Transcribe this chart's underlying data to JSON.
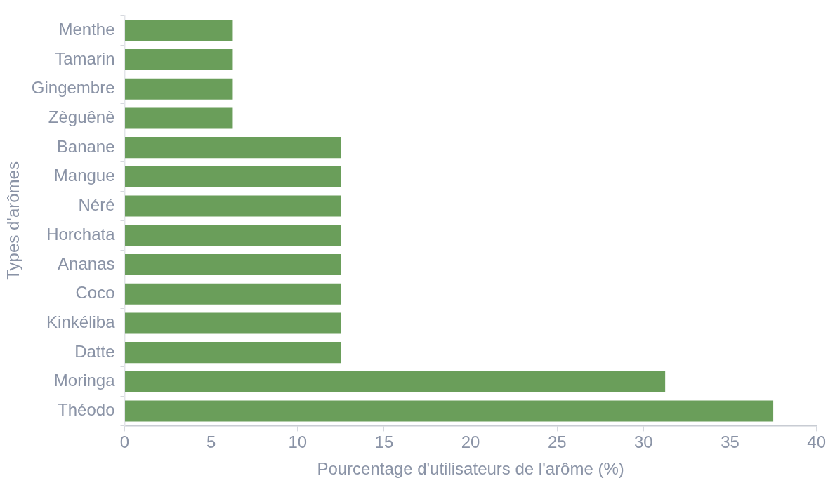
{
  "chart_data": {
    "type": "bar",
    "orientation": "horizontal",
    "xlabel": "Pourcentage d'utilisateurs de l'arôme (%)",
    "ylabel": "Types d'arômes",
    "categories": [
      "Menthe",
      "Tamarin",
      "Gingembre",
      "Zèguênè",
      "Banane",
      "Mangue",
      "Néré",
      "Horchata",
      "Ananas",
      "Coco",
      "Kinkéliba",
      "Datte",
      "Moringa",
      "Théodo"
    ],
    "values": [
      6.25,
      6.25,
      6.25,
      6.25,
      12.5,
      12.5,
      12.5,
      12.5,
      12.5,
      12.5,
      12.5,
      12.5,
      31.25,
      37.5
    ],
    "color": "#6a9e5a",
    "xlim": [
      0,
      40
    ],
    "xticks": [
      0,
      5,
      10,
      15,
      20,
      25,
      30,
      35,
      40
    ],
    "grid": false,
    "legend": false
  }
}
